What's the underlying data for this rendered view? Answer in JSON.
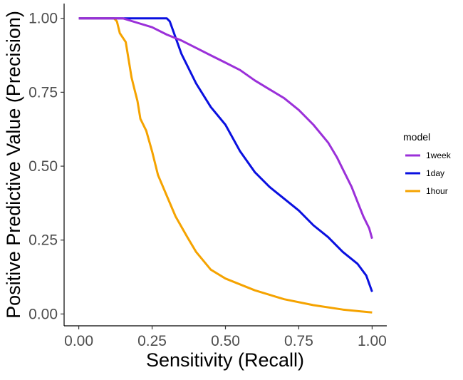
{
  "chart_data": {
    "type": "line",
    "title": "",
    "xlabel": "Sensitivity (Recall)",
    "ylabel": "Positive Predictive Value (Precision)",
    "xlim": [
      -0.05,
      1.05
    ],
    "ylim": [
      -0.04,
      1.05
    ],
    "x_ticks": [
      0.0,
      0.25,
      0.5,
      0.75,
      1.0
    ],
    "x_tick_labels": [
      "0.00",
      "0.25",
      "0.50",
      "0.75",
      "1.00"
    ],
    "y_ticks": [
      0.0,
      0.25,
      0.5,
      0.75,
      1.0
    ],
    "y_tick_labels": [
      "0.00",
      "0.25",
      "0.50",
      "0.75",
      "1.00"
    ],
    "grid": false,
    "legend": {
      "title": "model",
      "placement": "right"
    },
    "series": [
      {
        "name": "1week",
        "color": "#9b30d9",
        "points": [
          [
            0.0,
            1.0
          ],
          [
            0.15,
            1.0
          ],
          [
            0.2,
            0.985
          ],
          [
            0.25,
            0.97
          ],
          [
            0.3,
            0.945
          ],
          [
            0.35,
            0.925
          ],
          [
            0.4,
            0.9
          ],
          [
            0.45,
            0.875
          ],
          [
            0.5,
            0.85
          ],
          [
            0.55,
            0.825
          ],
          [
            0.6,
            0.79
          ],
          [
            0.65,
            0.76
          ],
          [
            0.7,
            0.73
          ],
          [
            0.75,
            0.69
          ],
          [
            0.8,
            0.64
          ],
          [
            0.85,
            0.58
          ],
          [
            0.88,
            0.53
          ],
          [
            0.9,
            0.49
          ],
          [
            0.93,
            0.43
          ],
          [
            0.95,
            0.38
          ],
          [
            0.97,
            0.33
          ],
          [
            0.99,
            0.29
          ],
          [
            1.0,
            0.255
          ]
        ]
      },
      {
        "name": "1day",
        "color": "#0a10e0",
        "points": [
          [
            0.0,
            1.0
          ],
          [
            0.3,
            1.0
          ],
          [
            0.31,
            0.99
          ],
          [
            0.35,
            0.88
          ],
          [
            0.4,
            0.78
          ],
          [
            0.45,
            0.7
          ],
          [
            0.5,
            0.64
          ],
          [
            0.55,
            0.55
          ],
          [
            0.6,
            0.48
          ],
          [
            0.65,
            0.43
          ],
          [
            0.7,
            0.39
          ],
          [
            0.75,
            0.35
          ],
          [
            0.8,
            0.3
          ],
          [
            0.85,
            0.26
          ],
          [
            0.9,
            0.21
          ],
          [
            0.95,
            0.17
          ],
          [
            0.98,
            0.13
          ],
          [
            1.0,
            0.075
          ]
        ]
      },
      {
        "name": "1hour",
        "color": "#f5a300",
        "points": [
          [
            0.0,
            1.0
          ],
          [
            0.12,
            1.0
          ],
          [
            0.13,
            0.99
          ],
          [
            0.14,
            0.95
          ],
          [
            0.16,
            0.92
          ],
          [
            0.17,
            0.86
          ],
          [
            0.18,
            0.8
          ],
          [
            0.19,
            0.76
          ],
          [
            0.2,
            0.72
          ],
          [
            0.21,
            0.66
          ],
          [
            0.23,
            0.62
          ],
          [
            0.25,
            0.55
          ],
          [
            0.27,
            0.47
          ],
          [
            0.3,
            0.4
          ],
          [
            0.33,
            0.33
          ],
          [
            0.37,
            0.26
          ],
          [
            0.4,
            0.21
          ],
          [
            0.45,
            0.15
          ],
          [
            0.5,
            0.12
          ],
          [
            0.6,
            0.08
          ],
          [
            0.7,
            0.05
          ],
          [
            0.8,
            0.03
          ],
          [
            0.9,
            0.015
          ],
          [
            1.0,
            0.005
          ]
        ]
      }
    ]
  }
}
